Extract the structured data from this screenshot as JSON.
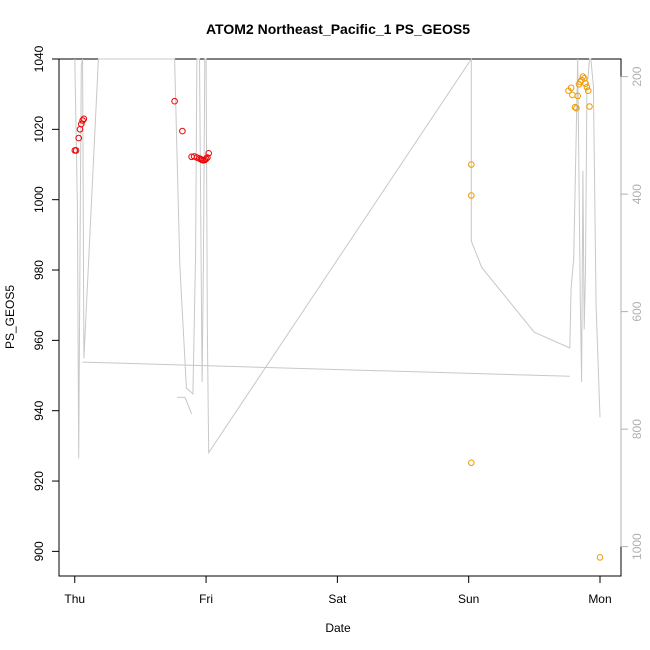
{
  "chart_data": {
    "type": "scatter",
    "title": "ATOM2 Northeast_Pacific_1 PS_GEOS5",
    "xlabel": "Date",
    "ylabel": "PS_GEOS5",
    "x_ticks": [
      {
        "label": "Thu",
        "value": 0
      },
      {
        "label": "Fri",
        "value": 1
      },
      {
        "label": "Sat",
        "value": 2
      },
      {
        "label": "Sun",
        "value": 3
      },
      {
        "label": "Mon",
        "value": 4
      }
    ],
    "xlim": [
      -0.12,
      4.16
    ],
    "ylim": [
      893,
      1040
    ],
    "y_ticks": [
      900,
      920,
      940,
      960,
      980,
      1000,
      1020,
      1040
    ],
    "y2_ticks": [
      200,
      400,
      600,
      800,
      1000
    ],
    "y2lim": [
      1050,
      170
    ],
    "y2_reversed": true,
    "grid": false,
    "colors": {
      "flight1": "#ee0000",
      "flight2": "#ee9a00",
      "altitude": "#c8c8c8",
      "axis": "#000000",
      "right_axis": "#b0b0b0"
    },
    "series": [
      {
        "color": "#ee0000",
        "points": [
          [
            0.0,
            1014
          ],
          [
            0.01,
            1014
          ],
          [
            0.03,
            1017.5
          ],
          [
            0.04,
            1020
          ],
          [
            0.05,
            1021.5
          ],
          [
            0.06,
            1022.5
          ],
          [
            0.07,
            1023
          ],
          [
            0.76,
            1028
          ],
          [
            0.82,
            1019.5
          ],
          [
            0.89,
            1012.2
          ],
          [
            0.91,
            1012.3
          ],
          [
            0.93,
            1012
          ],
          [
            0.95,
            1011.7
          ],
          [
            0.96,
            1011.5
          ],
          [
            0.97,
            1011.3
          ],
          [
            0.98,
            1011.2
          ],
          [
            0.99,
            1011.3
          ],
          [
            1.0,
            1011.6
          ],
          [
            1.01,
            1012
          ],
          [
            1.02,
            1013.2
          ]
        ]
      },
      {
        "color": "#ee9a00",
        "points": [
          [
            3.02,
            1010
          ],
          [
            3.02,
            1001.2
          ],
          [
            3.02,
            925.2
          ],
          [
            3.76,
            1031
          ],
          [
            3.78,
            1031.8
          ],
          [
            3.79,
            1029.8
          ],
          [
            3.81,
            1026.3
          ],
          [
            3.82,
            1026
          ],
          [
            3.83,
            1029.5
          ],
          [
            3.84,
            1032.8
          ],
          [
            3.85,
            1033.5
          ],
          [
            3.86,
            1034
          ],
          [
            3.87,
            1035
          ],
          [
            3.88,
            1034.5
          ],
          [
            3.89,
            1033
          ],
          [
            3.9,
            1032
          ],
          [
            3.91,
            1031
          ],
          [
            3.92,
            1026.5
          ],
          [
            4.0,
            898.3
          ]
        ]
      },
      {
        "name": "altitude",
        "axis": "right",
        "color": "#c8c8c8",
        "points": [
          [
            0.0,
            170
          ],
          [
            0.02,
            420
          ],
          [
            0.03,
            850
          ],
          [
            0.04,
            500
          ],
          [
            0.05,
            180
          ],
          [
            0.06,
            170
          ],
          [
            0.07,
            680
          ],
          [
            0.18,
            170
          ],
          [
            0.76,
            170
          ],
          [
            0.8,
            520
          ],
          [
            0.85,
            730
          ],
          [
            0.9,
            740
          ],
          [
            0.92,
            500
          ],
          [
            0.93,
            170
          ],
          [
            0.95,
            170
          ],
          [
            0.97,
            720
          ],
          [
            0.98,
            520
          ],
          [
            0.99,
            170
          ],
          [
            1.0,
            170
          ],
          [
            1.01,
            640
          ],
          [
            1.02,
            840
          ],
          [
            3.02,
            170
          ],
          [
            3.02,
            480
          ],
          [
            3.1,
            525
          ],
          [
            3.5,
            635
          ],
          [
            3.77,
            662
          ],
          [
            3.78,
            560
          ],
          [
            3.8,
            510
          ],
          [
            3.83,
            170
          ],
          [
            3.85,
            580
          ],
          [
            3.86,
            720
          ],
          [
            3.87,
            360
          ],
          [
            3.88,
            630
          ],
          [
            3.89,
            530
          ],
          [
            3.9,
            225
          ],
          [
            3.92,
            170
          ],
          [
            3.93,
            170
          ],
          [
            3.95,
            215
          ],
          [
            3.97,
            590
          ],
          [
            4.0,
            780
          ]
        ]
      },
      {
        "name": "altitude-leg-2",
        "axis": "right",
        "color": "#c8c8c8",
        "points": [
          [
            0.06,
            686
          ],
          [
            3.77,
            710
          ]
        ]
      },
      {
        "name": "altitude-stub",
        "axis": "right",
        "color": "#c8c8c8",
        "points": [
          [
            0.78,
            746
          ],
          [
            0.84,
            746
          ],
          [
            0.89,
            774
          ]
        ]
      }
    ]
  }
}
